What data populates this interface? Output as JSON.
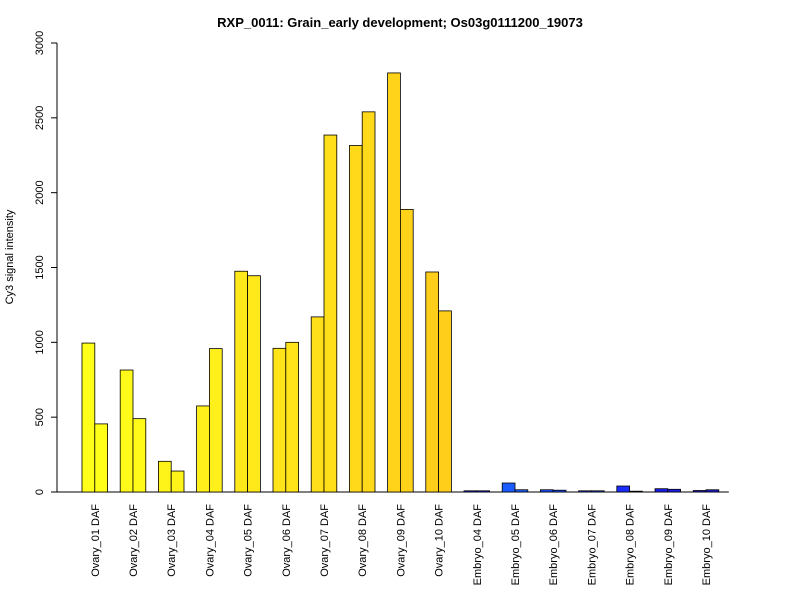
{
  "chart_data": {
    "type": "bar",
    "title": "RXP_0011: Grain_early development; Os03g0111200_19073",
    "xlabel": "",
    "ylabel": "Cy3 signal intensity",
    "ylim": [
      0,
      3000
    ],
    "yticks": [
      0,
      500,
      1000,
      1500,
      2000,
      2500,
      3000
    ],
    "grid": false,
    "legend": "none",
    "categories": [
      "Ovary_01 DAF",
      "Ovary_02 DAF",
      "Ovary_03 DAF",
      "Ovary_04 DAF",
      "Ovary_05 DAF",
      "Ovary_06 DAF",
      "Ovary_07 DAF",
      "Ovary_08 DAF",
      "Ovary_09 DAF",
      "Ovary_10 DAF",
      "Embryo_04 DAF",
      "Embryo_05 DAF",
      "Embryo_06 DAF",
      "Embryo_07 DAF",
      "Embryo_08 DAF",
      "Embryo_09 DAF",
      "Embryo_10 DAF"
    ],
    "series": [
      {
        "values": [
          995,
          815,
          205,
          575,
          1475,
          960,
          1170,
          2315,
          2800,
          1470,
          8,
          60,
          15,
          8,
          40,
          22,
          10
        ]
      },
      {
        "values": [
          455,
          490,
          140,
          958,
          1445,
          1000,
          2385,
          2540,
          1888,
          1210,
          8,
          15,
          12,
          8,
          5,
          18,
          15
        ]
      }
    ],
    "bar_colors": [
      "#FFFF1A",
      "#FFFA1A",
      "#FFF41A",
      "#FFEF1A",
      "#FFE91A",
      "#FFE41A",
      "#FFDE1A",
      "#FFD91A",
      "#FFD31A",
      "#FFCE1A",
      "#1A1AFF",
      "#1A5CFF",
      "#1A4CFF",
      "#1A3CFF",
      "#1A2CFF",
      "#1A1CE8",
      "#1A1AD0"
    ],
    "bar_border_color": "#000000"
  }
}
